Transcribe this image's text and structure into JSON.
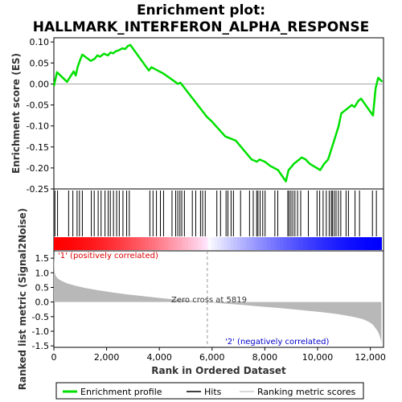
{
  "title": "Enrichment plot: HALLMARK_INTERFERON_ALPHA_RESPONSE",
  "chart_data": {
    "type": "line",
    "title": "Enrichment plot: HALLMARK_INTERFERON_ALPHA_RESPONSE",
    "xlabel": "Rank in Ordered Dataset",
    "xlim": [
      0,
      12500
    ],
    "x_ticks": [
      "0",
      "2,000",
      "4,000",
      "6,000",
      "8,000",
      "10,000",
      "12,000"
    ],
    "colors": {
      "enrichment": "#00e000",
      "metric_fill": "#b8b8b8",
      "pos_bar": "#ff0000",
      "neg_bar": "#0000ff"
    },
    "top_panel": {
      "ylabel": "Enrichment score (ES)",
      "ylim": [
        -0.25,
        0.11
      ],
      "y_ticks": [
        "0.10",
        "0.05",
        "0.00",
        "-0.05",
        "-0.10",
        "-0.15",
        "-0.20",
        "-0.25"
      ],
      "series": [
        {
          "name": "Enrichment profile",
          "x": [
            0,
            120,
            500,
            650,
            750,
            830,
            900,
            1000,
            1080,
            1400,
            1550,
            1650,
            1750,
            1900,
            2050,
            2150,
            2250,
            2350,
            2450,
            2600,
            2700,
            2800,
            2900,
            3600,
            3700,
            3850,
            4000,
            4150,
            4600,
            4700,
            4800,
            5800,
            6000,
            6500,
            6700,
            6900,
            7500,
            7700,
            7800,
            8000,
            8200,
            8500,
            8800,
            8900,
            9000,
            9100,
            9200,
            9400,
            9550,
            9700,
            10100,
            10250,
            10400,
            10500,
            10600,
            10700,
            10800,
            10900,
            11100,
            11300,
            11400,
            11550,
            11650,
            12100,
            12200,
            12300,
            12450
          ],
          "y": [
            -0.005,
            0.028,
            0.005,
            0.02,
            0.03,
            0.02,
            0.04,
            0.058,
            0.07,
            0.055,
            0.06,
            0.068,
            0.065,
            0.072,
            0.068,
            0.075,
            0.073,
            0.078,
            0.08,
            0.085,
            0.083,
            0.09,
            0.093,
            0.032,
            0.04,
            0.035,
            0.03,
            0.025,
            0.005,
            0.0,
            0.003,
            -0.078,
            -0.09,
            -0.125,
            -0.13,
            -0.135,
            -0.18,
            -0.185,
            -0.18,
            -0.185,
            -0.195,
            -0.205,
            -0.232,
            -0.205,
            -0.198,
            -0.19,
            -0.185,
            -0.175,
            -0.18,
            -0.19,
            -0.205,
            -0.19,
            -0.18,
            -0.16,
            -0.14,
            -0.12,
            -0.1,
            -0.07,
            -0.06,
            -0.05,
            -0.055,
            -0.04,
            -0.035,
            -0.075,
            -0.01,
            0.015,
            0.005
          ]
        }
      ],
      "hits": [
        40,
        140,
        560,
        720,
        880,
        970,
        1080,
        1420,
        1530,
        1680,
        1790,
        1940,
        2060,
        2140,
        2260,
        2380,
        2480,
        2620,
        2760,
        2860,
        3640,
        3760,
        3890,
        4040,
        4160,
        4480,
        4620,
        4700,
        4780,
        4850,
        4950,
        5250,
        5380,
        5560,
        5640,
        5740,
        6180,
        6320,
        6530,
        6600,
        6720,
        6810,
        7080,
        7420,
        7560,
        7690,
        7740,
        7820,
        7920,
        8010,
        8380,
        8490,
        8870,
        8920,
        8990,
        9060,
        9140,
        9240,
        9360,
        9650,
        9980,
        10080,
        10210,
        10330,
        10440,
        10520,
        10560,
        10630,
        10700,
        10790,
        10880,
        11080,
        11170,
        11420,
        11590,
        12080,
        12230
      ]
    },
    "bottom_panel": {
      "ylabel": "Ranked list metric (Signal2Noise)",
      "ylim": [
        -1.55,
        1.75
      ],
      "y_ticks": [
        "1.5",
        "1.0",
        "0.5",
        "0.0",
        "-0.5",
        "-1.0",
        "-1.5"
      ],
      "x": [
        0,
        30,
        80,
        150,
        300,
        500,
        800,
        1200,
        1700,
        2200,
        2800,
        3500,
        4200,
        4900,
        5500,
        5819,
        6300,
        7000,
        7800,
        8600,
        9400,
        10200,
        10800,
        11300,
        11700,
        11950,
        12100,
        12200,
        12280,
        12330,
        12370,
        12400,
        12420
      ],
      "y": [
        1.62,
        1.0,
        0.88,
        0.8,
        0.72,
        0.64,
        0.56,
        0.48,
        0.4,
        0.33,
        0.26,
        0.19,
        0.12,
        0.06,
        0.02,
        0.0,
        -0.04,
        -0.09,
        -0.15,
        -0.21,
        -0.28,
        -0.35,
        -0.42,
        -0.5,
        -0.58,
        -0.68,
        -0.78,
        -0.9,
        -1.0,
        -1.1,
        -1.2,
        -1.3,
        -1.42
      ],
      "zero_cross": 5819,
      "zero_label": "Zero cross at 5819",
      "pos_label": "'1' (positively correlated)",
      "neg_label": "'2' (negatively correlated)"
    },
    "legend": [
      "Enrichment profile",
      "Hits",
      "Ranking metric scores"
    ]
  }
}
